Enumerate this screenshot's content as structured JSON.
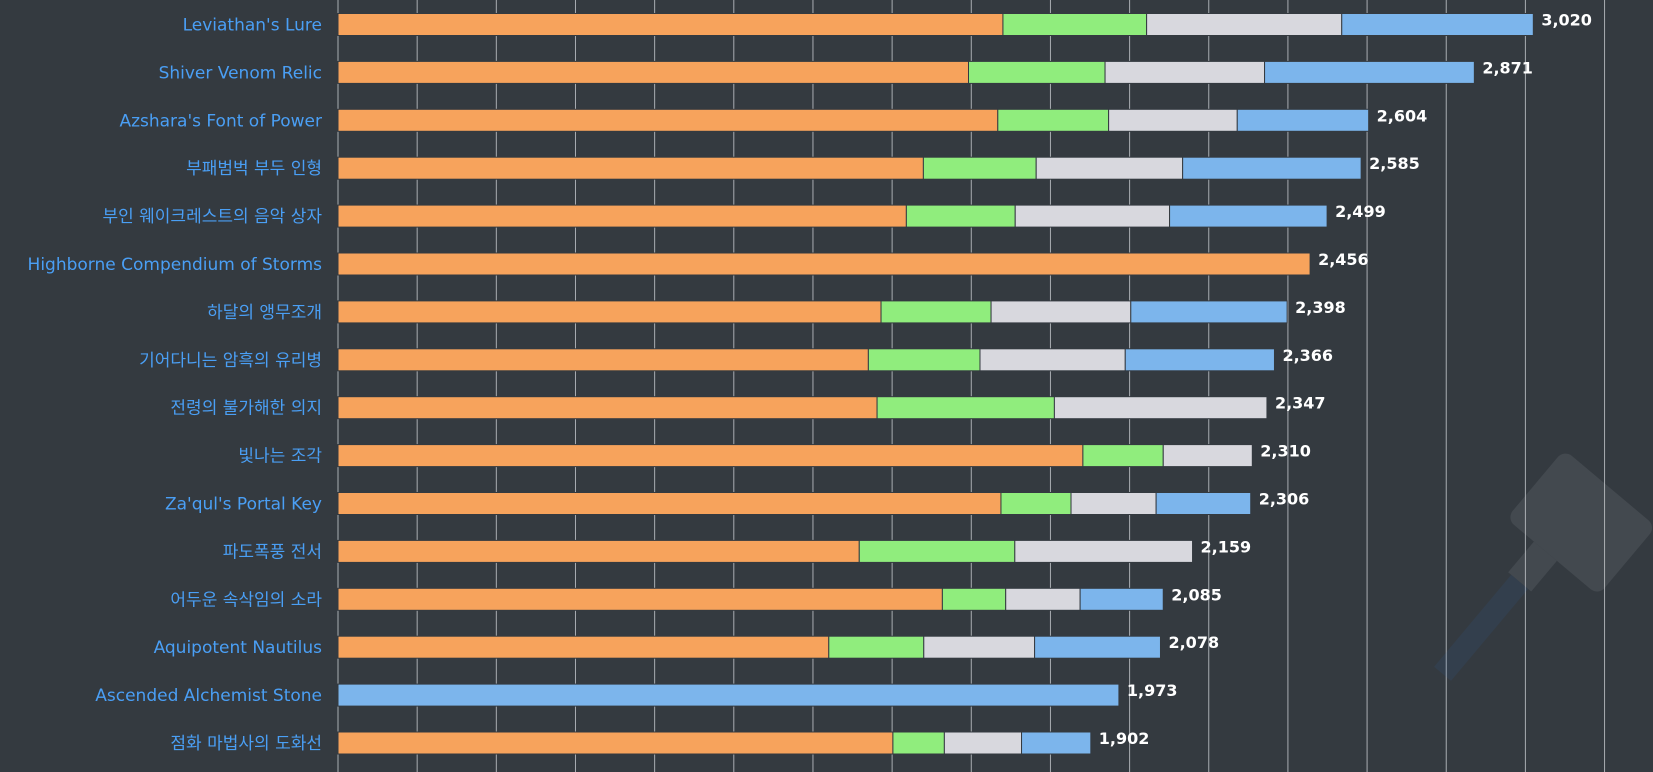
{
  "chart_data": {
    "type": "bar",
    "orientation": "horizontal",
    "stacked": true,
    "xlim": [
      0,
      3300
    ],
    "grid_step": 200,
    "grid": true,
    "legend": "none",
    "categories": [
      "Leviathan's Lure",
      "Shiver Venom Relic",
      "Azshara's Font of Power",
      "부패범벅 부두 인형",
      "부인 웨이크레스트의 음악 상자",
      "Highborne Compendium of Storms",
      "하달의 앵무조개",
      "기어다니는 암흑의 유리병",
      "전령의 불가해한 의지",
      "빛나는 조각",
      "Za'qul's Portal Key",
      "파도폭풍 전서",
      "어두운 속삭임의 소라",
      "Aquipotent Nautilus",
      "Ascended Alchemist Stone",
      "점화 마법사의 도화선"
    ],
    "series": [
      {
        "color": "#f7a35c",
        "values": [
          1680,
          1593,
          1667,
          1479,
          1436,
          2456,
          1372,
          1340,
          1362,
          1882,
          1675,
          1317,
          1527,
          1240,
          0,
          1402
        ]
      },
      {
        "color": "#90ed7d",
        "values": [
          363,
          345,
          280,
          285,
          275,
          0,
          278,
          282,
          448,
          203,
          177,
          393,
          160,
          240,
          0,
          130
        ]
      },
      {
        "color": "#d8d8de",
        "values": [
          493,
          403,
          325,
          370,
          390,
          0,
          353,
          367,
          537,
          225,
          215,
          449,
          188,
          280,
          0,
          195
        ]
      },
      {
        "color": "#7cb5ec",
        "values": [
          484,
          530,
          332,
          451,
          398,
          0,
          395,
          377,
          0,
          0,
          239,
          0,
          210,
          318,
          1973,
          175
        ]
      }
    ],
    "totals": [
      "3,020",
      "2,871",
      "2,604",
      "2,585",
      "2,499",
      "2,456",
      "2,398",
      "2,366",
      "2,347",
      "2,310",
      "2,306",
      "2,159",
      "2,085",
      "2,078",
      "1,973",
      "1,902"
    ],
    "label_color": "#4a9ff5",
    "background": "#343a40",
    "grid_color": "#a9adb2"
  }
}
